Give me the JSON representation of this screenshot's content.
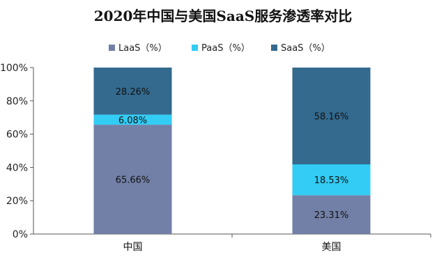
{
  "chart_data": {
    "type": "bar",
    "stacked": true,
    "title": "2020年中国与美国SaaS服务渗透率对比",
    "categories": [
      "中国",
      "美国"
    ],
    "series": [
      {
        "name": "LaaS（%）",
        "color": "#7280A7",
        "values": [
          65.66,
          23.31
        ],
        "labels": [
          "65.66%",
          "23.31%"
        ]
      },
      {
        "name": "PaaS（%）",
        "color": "#33CCF4",
        "values": [
          6.08,
          18.53
        ],
        "labels": [
          "6.08%",
          "18.53%"
        ]
      },
      {
        "name": "SaaS（%）",
        "color": "#336A8E",
        "values": [
          28.26,
          58.16
        ],
        "labels": [
          "28.26%",
          "58.16%"
        ]
      }
    ],
    "ylim": [
      0,
      100
    ],
    "yticks": [
      0,
      20,
      40,
      60,
      80,
      100
    ],
    "ytick_labels": [
      "0%",
      "20%",
      "40%",
      "60%",
      "80%",
      "100%"
    ],
    "legend_position": "top",
    "grid": false
  }
}
